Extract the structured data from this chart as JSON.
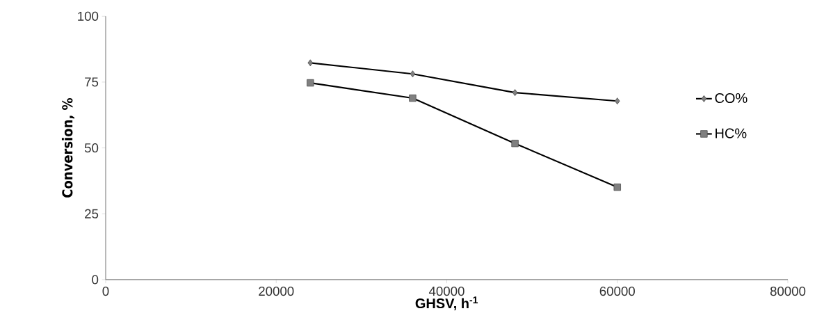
{
  "chart_data": {
    "type": "line",
    "xlabel": "GHSV, h$^{-1}$",
    "ylabel": "Conversion, %",
    "x": [
      24000,
      36000,
      48000,
      60000
    ],
    "series": [
      {
        "name": "CO%",
        "color": "#000000",
        "marker": "diamond",
        "values": [
          82.3,
          78.1,
          71,
          67.8
        ]
      },
      {
        "name": "HC%",
        "color": "#000000",
        "marker": "square",
        "values": [
          74.7,
          68.9,
          51.7,
          35.1
        ]
      }
    ],
    "xlim": [
      0,
      80000
    ],
    "xticks": [
      0,
      20000,
      40000,
      60000,
      80000
    ],
    "ylim": [
      0,
      100
    ],
    "yticks": [
      0,
      25,
      50,
      75,
      100
    ],
    "grid": false,
    "legend": "right"
  }
}
